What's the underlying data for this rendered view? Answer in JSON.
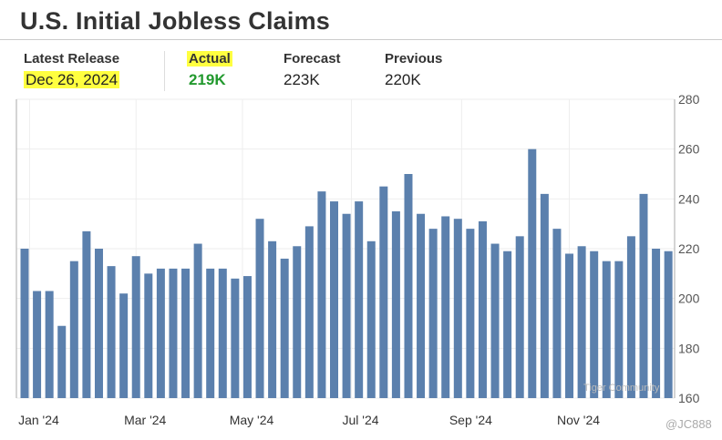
{
  "title": "U.S. Initial Jobless Claims",
  "stats": {
    "latest_release": {
      "label": "Latest Release",
      "value": "Dec 26, 2024"
    },
    "actual": {
      "label": "Actual",
      "value": "219K",
      "color": "#22992e"
    },
    "forecast": {
      "label": "Forecast",
      "value": "223K"
    },
    "previous": {
      "label": "Previous",
      "value": "220K"
    }
  },
  "watermark": {
    "community": "Tiger Community",
    "handle": "@JC888"
  },
  "colors": {
    "bar": "#5b80ad",
    "highlight": "#ffff40"
  },
  "chart_data": {
    "type": "bar",
    "title": "",
    "xlabel": "",
    "ylabel": "",
    "ylim": [
      160,
      280
    ],
    "yticks": [
      160,
      180,
      200,
      220,
      240,
      260,
      280
    ],
    "y_axis_side": "right",
    "grid": true,
    "xtick_labels": [
      "Jan '24",
      "Mar '24",
      "May '24",
      "Jul '24",
      "Sep '24",
      "Nov '24"
    ],
    "values": [
      220,
      203,
      203,
      189,
      215,
      227,
      220,
      213,
      202,
      217,
      210,
      212,
      212,
      212,
      222,
      212,
      212,
      208,
      209,
      232,
      223,
      216,
      221,
      229,
      243,
      239,
      234,
      239,
      223,
      245,
      235,
      250,
      234,
      228,
      233,
      232,
      228,
      231,
      222,
      219,
      225,
      260,
      242,
      228,
      218,
      221,
      219,
      215,
      215,
      225,
      242,
      220,
      219
    ]
  }
}
